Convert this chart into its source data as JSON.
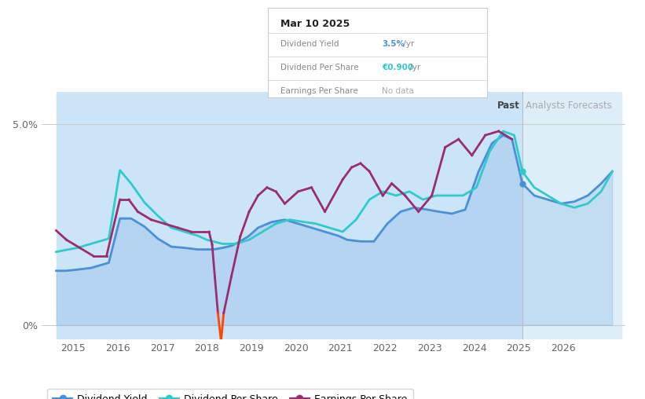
{
  "bg_color": "#ffffff",
  "past_fill_color": "#cce4f7",
  "forecast_fill_color": "#ddeef8",
  "ylabel_5pct": "5.0%",
  "ylabel_0pct": "0%",
  "past_label": "Past",
  "forecast_label": "Analysts Forecasts",
  "tooltip_date": "Mar 10 2025",
  "tooltip_dy_label": "Dividend Yield",
  "tooltip_dy_value": "3.5%",
  "tooltip_dy_suffix": " /yr",
  "tooltip_dps_label": "Dividend Per Share",
  "tooltip_dps_value": "€0.900",
  "tooltip_dps_suffix": " /yr",
  "tooltip_eps_label": "Earnings Per Share",
  "tooltip_eps_value": "No data",
  "div_yield_color": "#4A90D9",
  "div_per_share_color": "#2ECBCB",
  "earn_per_share_color": "#9B2D6F",
  "earn_per_share_neg_color": "#FF4500",
  "legend_labels": [
    "Dividend Yield",
    "Dividend Per Share",
    "Earnings Per Share"
  ],
  "past_region_start": 2014.62,
  "past_region_end": 2025.08,
  "forecast_region_start": 2025.08,
  "forecast_region_end": 2027.3,
  "x_ticks": [
    2015,
    2016,
    2017,
    2018,
    2019,
    2020,
    2021,
    2022,
    2023,
    2024,
    2025,
    2026
  ],
  "ylim": [
    -0.35,
    5.8
  ],
  "xlim": [
    2014.3,
    2027.4
  ],
  "div_yield_x": [
    2014.62,
    2014.85,
    2015.1,
    2015.4,
    2015.8,
    2016.05,
    2016.3,
    2016.6,
    2016.9,
    2017.2,
    2017.5,
    2017.8,
    2018.0,
    2018.15,
    2018.35,
    2018.55,
    2018.75,
    2018.95,
    2019.15,
    2019.45,
    2019.75,
    2020.05,
    2020.35,
    2020.65,
    2020.95,
    2021.15,
    2021.45,
    2021.75,
    2022.05,
    2022.35,
    2022.65,
    2022.95,
    2023.2,
    2023.5,
    2023.8,
    2024.1,
    2024.4,
    2024.65,
    2024.85,
    2025.08,
    2025.35,
    2025.65,
    2025.95,
    2026.25,
    2026.55,
    2026.85,
    2027.1
  ],
  "div_yield_y": [
    1.35,
    1.35,
    1.38,
    1.42,
    1.55,
    2.65,
    2.65,
    2.45,
    2.15,
    1.95,
    1.92,
    1.88,
    1.88,
    1.88,
    1.92,
    1.97,
    2.08,
    2.22,
    2.42,
    2.56,
    2.62,
    2.52,
    2.42,
    2.32,
    2.22,
    2.12,
    2.08,
    2.08,
    2.52,
    2.82,
    2.92,
    2.87,
    2.82,
    2.77,
    2.87,
    3.82,
    4.52,
    4.72,
    4.62,
    3.52,
    3.22,
    3.12,
    3.02,
    3.07,
    3.22,
    3.52,
    3.82
  ],
  "div_per_share_x": [
    2014.62,
    2014.85,
    2015.1,
    2015.4,
    2015.8,
    2016.05,
    2016.3,
    2016.6,
    2016.9,
    2017.2,
    2017.5,
    2017.8,
    2018.0,
    2018.35,
    2018.65,
    2018.95,
    2019.25,
    2019.55,
    2019.85,
    2020.15,
    2020.45,
    2020.75,
    2021.05,
    2021.35,
    2021.65,
    2021.95,
    2022.25,
    2022.55,
    2022.85,
    2023.15,
    2023.45,
    2023.75,
    2024.05,
    2024.35,
    2024.65,
    2024.9,
    2025.08,
    2025.35,
    2025.65,
    2025.95,
    2026.25,
    2026.55,
    2026.85,
    2027.1
  ],
  "div_per_share_y": [
    1.82,
    1.87,
    1.92,
    2.02,
    2.15,
    3.85,
    3.52,
    3.05,
    2.72,
    2.42,
    2.32,
    2.22,
    2.12,
    2.02,
    2.02,
    2.12,
    2.32,
    2.52,
    2.62,
    2.57,
    2.52,
    2.42,
    2.32,
    2.62,
    3.12,
    3.32,
    3.22,
    3.32,
    3.12,
    3.22,
    3.22,
    3.22,
    3.42,
    4.32,
    4.82,
    4.72,
    3.82,
    3.42,
    3.22,
    3.02,
    2.92,
    3.02,
    3.32,
    3.82
  ],
  "earn_per_share_x": [
    2014.62,
    2014.85,
    2015.15,
    2015.45,
    2015.75,
    2016.05,
    2016.25,
    2016.45,
    2016.75,
    2017.05,
    2017.35,
    2017.65,
    2017.95,
    2018.05,
    2018.12,
    2018.18,
    2018.25,
    2018.32,
    2018.38,
    2018.55,
    2018.75,
    2018.95,
    2019.15,
    2019.35,
    2019.55,
    2019.75,
    2020.05,
    2020.35,
    2020.65,
    2021.05,
    2021.25,
    2021.45,
    2021.65,
    2021.95,
    2022.15,
    2022.45,
    2022.75,
    2023.05,
    2023.35,
    2023.65,
    2023.95,
    2024.25,
    2024.55,
    2024.85
  ],
  "earn_per_share_y": [
    2.35,
    2.12,
    1.92,
    1.72,
    1.72,
    3.12,
    3.12,
    2.82,
    2.62,
    2.52,
    2.42,
    2.32,
    2.32,
    2.32,
    2.0,
    1.2,
    0.3,
    -0.4,
    0.3,
    1.2,
    2.2,
    2.82,
    3.22,
    3.42,
    3.32,
    3.02,
    3.32,
    3.42,
    2.82,
    3.62,
    3.92,
    4.02,
    3.82,
    3.22,
    3.52,
    3.22,
    2.82,
    3.22,
    4.42,
    4.62,
    4.22,
    4.72,
    4.82,
    4.62
  ]
}
